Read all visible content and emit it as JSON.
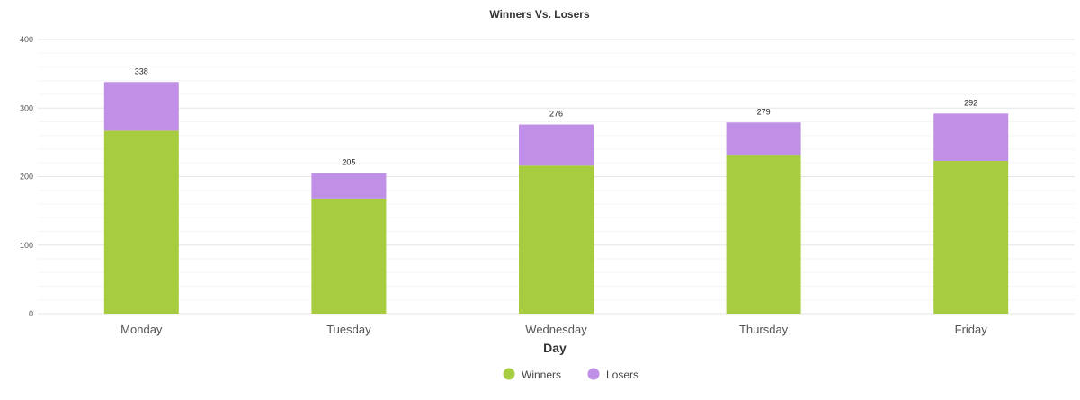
{
  "chart_data": {
    "type": "bar",
    "stacked": true,
    "title": "Winners Vs. Losers",
    "xlabel": "Day",
    "ylabel": "",
    "ylim": [
      0,
      400
    ],
    "yticks": [
      0,
      100,
      200,
      300,
      400
    ],
    "categories": [
      "Monday",
      "Tuesday",
      "Wednesday",
      "Thursday",
      "Friday"
    ],
    "series": [
      {
        "name": "Winners",
        "color": "#a8cc3f",
        "values": [
          267,
          168,
          216,
          232,
          223
        ]
      },
      {
        "name": "Losers",
        "color": "#bf90e6",
        "values": [
          71,
          37,
          60,
          47,
          69
        ]
      }
    ],
    "totals": [
      338,
      205,
      276,
      279,
      292
    ],
    "legend_position": "bottom-center",
    "grid": true
  }
}
